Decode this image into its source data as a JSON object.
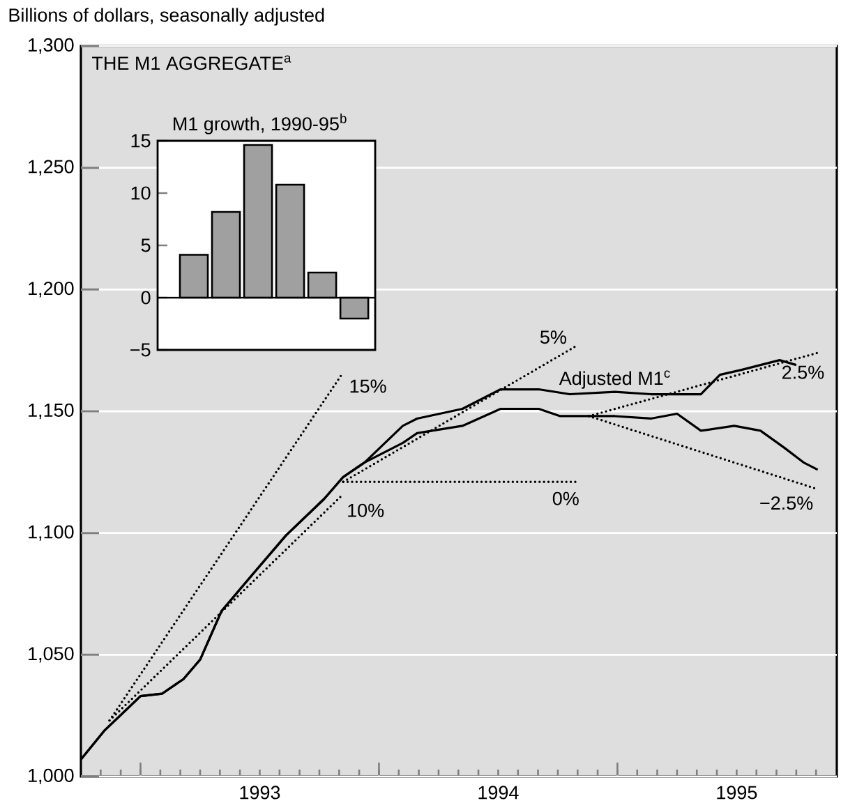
{
  "chart_data": [
    {
      "type": "line",
      "title": "THE M1 AGGREGATE$^{a}$",
      "ylabel": "Billions of dollars, seasonally adjusted",
      "xlim": [
        1992.75,
        1995.92
      ],
      "ylim": [
        1000,
        1300
      ],
      "yticks": [
        {
          "value": 1000,
          "label": "1,000"
        },
        {
          "value": 1050,
          "label": "1,050"
        },
        {
          "value": 1100,
          "label": "1,100"
        },
        {
          "value": 1150,
          "label": "1,150"
        },
        {
          "value": 1200,
          "label": "1,200"
        },
        {
          "value": 1250,
          "label": "1,250"
        },
        {
          "value": 1300,
          "label": "1,300"
        }
      ],
      "xticks": [
        {
          "value": 1992.833,
          "label": null
        },
        {
          "value": 1992.917,
          "label": null
        },
        {
          "value": 1993,
          "label": null
        },
        {
          "value": 1993.083,
          "label": null
        },
        {
          "value": 1993.167,
          "label": null
        },
        {
          "value": 1993.25,
          "label": null
        },
        {
          "value": 1993.333,
          "label": null
        },
        {
          "value": 1993.417,
          "label": null
        },
        {
          "value": 1993.5,
          "label": "1993"
        },
        {
          "value": 1993.583,
          "label": null
        },
        {
          "value": 1993.667,
          "label": null
        },
        {
          "value": 1993.75,
          "label": null
        },
        {
          "value": 1993.833,
          "label": null
        },
        {
          "value": 1993.917,
          "label": null
        },
        {
          "value": 1994,
          "label": null
        },
        {
          "value": 1994.083,
          "label": null
        },
        {
          "value": 1994.167,
          "label": null
        },
        {
          "value": 1994.25,
          "label": null
        },
        {
          "value": 1994.333,
          "label": null
        },
        {
          "value": 1994.417,
          "label": null
        },
        {
          "value": 1994.5,
          "label": "1994"
        },
        {
          "value": 1994.583,
          "label": null
        },
        {
          "value": 1994.667,
          "label": null
        },
        {
          "value": 1994.75,
          "label": null
        },
        {
          "value": 1994.833,
          "label": null
        },
        {
          "value": 1994.917,
          "label": null
        },
        {
          "value": 1995,
          "label": null
        },
        {
          "value": 1995.083,
          "label": null
        },
        {
          "value": 1995.167,
          "label": null
        },
        {
          "value": 1995.25,
          "label": null
        },
        {
          "value": 1995.333,
          "label": null
        },
        {
          "value": 1995.417,
          "label": null
        },
        {
          "value": 1995.5,
          "label": "1995"
        },
        {
          "value": 1995.583,
          "label": null
        },
        {
          "value": 1995.667,
          "label": null
        },
        {
          "value": 1995.75,
          "label": null
        },
        {
          "value": 1995.833,
          "label": null
        }
      ],
      "grid": "y",
      "marker": "none",
      "series": [
        {
          "color": "#000000",
          "line_style": "solid",
          "x": [
            1992.75,
            1992.85,
            1993.0,
            1993.09,
            1993.18,
            1993.25,
            1993.34,
            1993.47,
            1993.61,
            1993.77,
            1993.85,
            1993.94,
            1994.1,
            1994.16,
            1994.35,
            1994.51,
            1994.67,
            1994.76,
            1994.99,
            1995.14,
            1995.25,
            1995.35,
            1995.49,
            1995.6,
            1995.7,
            1995.78,
            1995.84
          ],
          "values": [
            1007,
            1019,
            1033,
            1034,
            1040,
            1048,
            1068,
            1083,
            1099,
            1114,
            1123,
            1129,
            1137,
            1141,
            1144,
            1151,
            1151,
            1148,
            1148,
            1147,
            1149,
            1142,
            1144,
            1142,
            1135,
            1129,
            1126
          ]
        },
        {
          "name": "Adjusted M1$^{c}$",
          "color": "#000000",
          "line_style": "solid",
          "x": [
            1992.75,
            1992.85,
            1993.0,
            1993.09,
            1993.18,
            1993.25,
            1993.34,
            1993.47,
            1993.61,
            1993.77,
            1993.85,
            1993.94,
            1994.1,
            1994.16,
            1994.35,
            1994.51,
            1994.67,
            1994.8,
            1994.99,
            1995.14,
            1995.25,
            1995.35,
            1995.43,
            1995.52,
            1995.68,
            1995.75
          ],
          "values": [
            1007,
            1019,
            1033,
            1034,
            1040,
            1048,
            1068,
            1083,
            1099,
            1114,
            1123,
            1129,
            1144,
            1147,
            1151,
            1159,
            1159,
            1157,
            1158,
            1157,
            1157,
            1157,
            1165,
            1167,
            1171,
            1169
          ]
        },
        {
          "name": "15%",
          "color": "#000000",
          "line_style": "dotted",
          "x": [
            1992.87,
            1993.85
          ],
          "values": [
            1023,
            1166
          ]
        },
        {
          "name": "10%",
          "color": "#000000",
          "line_style": "dotted",
          "x": [
            1992.87,
            1993.84
          ],
          "values": [
            1023,
            1115
          ]
        },
        {
          "name": "0%",
          "color": "#000000",
          "line_style": "dotted",
          "x": [
            1993.85,
            1994.83
          ],
          "values": [
            1121,
            1121
          ]
        },
        {
          "name": "5%",
          "color": "#000000",
          "line_style": "dotted",
          "x": [
            1993.85,
            1994.83
          ],
          "values": [
            1121,
            1177
          ]
        },
        {
          "name": "2.5%",
          "color": "#000000",
          "line_style": "dotted",
          "x": [
            1994.88,
            1995.84
          ],
          "values": [
            1148,
            1174
          ]
        },
        {
          "name": "−2.5%",
          "color": "#000000",
          "line_style": "dotted",
          "x": [
            1994.88,
            1995.84
          ],
          "values": [
            1148,
            1118
          ]
        }
      ]
    },
    {
      "type": "bar",
      "title": "M1 growth, 1990-95$^{b}$",
      "categories": [
        null,
        null,
        null,
        null,
        null,
        null
      ],
      "values": [
        4.1,
        8.2,
        14.6,
        10.8,
        2.4,
        -2.0
      ],
      "color": "#a0a0a0",
      "ylim": [
        -5,
        15
      ],
      "yticks": [
        {
          "value": -5,
          "label": "−5"
        },
        0,
        5,
        10,
        15
      ]
    }
  ]
}
